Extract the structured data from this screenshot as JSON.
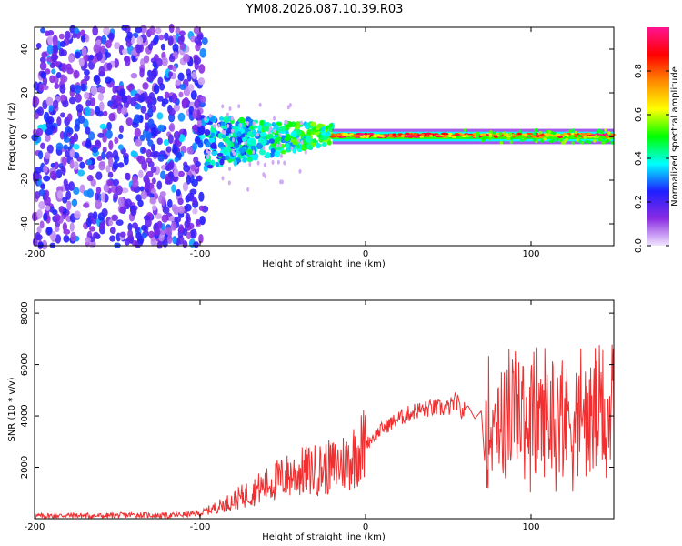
{
  "title": "YM08.2026.087.10.39.R03",
  "chart_data": [
    {
      "type": "heatmap",
      "name": "spectrogram",
      "xlabel": "Height of straight line (km)",
      "ylabel": "Frequency (Hz)",
      "xlim": [
        -200,
        150
      ],
      "ylim": [
        -50,
        50
      ],
      "xticks": [
        -200,
        -100,
        0,
        100
      ],
      "yticks": [
        -40,
        -20,
        0,
        20,
        40
      ],
      "colorbar": {
        "label": "Normalized spectral amplitude",
        "range": [
          0,
          1
        ],
        "ticks": [
          "0.0",
          "0.2",
          "0.4",
          "0.6",
          "0.8"
        ],
        "colors": [
          "#f2e6ff",
          "#8a2be2",
          "#1e1eff",
          "#00ffff",
          "#00ff00",
          "#ffff00",
          "#ff8c00",
          "#ff0000",
          "#ff1493"
        ]
      },
      "regions": [
        {
          "x_range": [
            -200,
            -97
          ],
          "freq_range": [
            -50,
            50
          ],
          "amplitude": "0.05-0.3",
          "pattern": "broadband noise"
        },
        {
          "x_range": [
            -97,
            -20
          ],
          "freq_range": [
            -12,
            8
          ],
          "amplitude": "0.2-0.6",
          "pattern": "narrowing band"
        },
        {
          "x_range": [
            -20,
            150
          ],
          "freq_range": [
            -3,
            3
          ],
          "amplitude": "0.6-1.0",
          "pattern": "narrow line near 0 Hz"
        }
      ]
    },
    {
      "type": "line",
      "name": "snr",
      "xlabel": "Height of straight line (km)",
      "ylabel": "SNR (10 * v/v)",
      "xlim": [
        -200,
        150
      ],
      "ylim": [
        0,
        8500
      ],
      "xticks": [
        -200,
        -100,
        0,
        100
      ],
      "yticks": [
        2000,
        4000,
        6000,
        8000
      ],
      "color": "#f03030",
      "x": [
        -200,
        -180,
        -160,
        -140,
        -120,
        -100,
        -90,
        -80,
        -70,
        -60,
        -50,
        -40,
        -30,
        -20,
        -10,
        0,
        10,
        20,
        30,
        40,
        50,
        55,
        58,
        62,
        66,
        70,
        72,
        75,
        78,
        80,
        85,
        88,
        92,
        95,
        100,
        105,
        108,
        110,
        115,
        120,
        125,
        130,
        135,
        140,
        145,
        150
      ],
      "y": [
        100,
        130,
        110,
        150,
        120,
        200,
        450,
        700,
        1000,
        1300,
        1600,
        1800,
        1900,
        2000,
        2300,
        2900,
        3500,
        3900,
        4200,
        4300,
        4300,
        4600,
        4100,
        4400,
        3900,
        4200,
        2200,
        6000,
        2800,
        7300,
        3500,
        6600,
        1000,
        6700,
        4300,
        7600,
        2100,
        8200,
        800,
        6400,
        2600,
        5800,
        900,
        5000,
        3200,
        4000
      ]
    }
  ]
}
